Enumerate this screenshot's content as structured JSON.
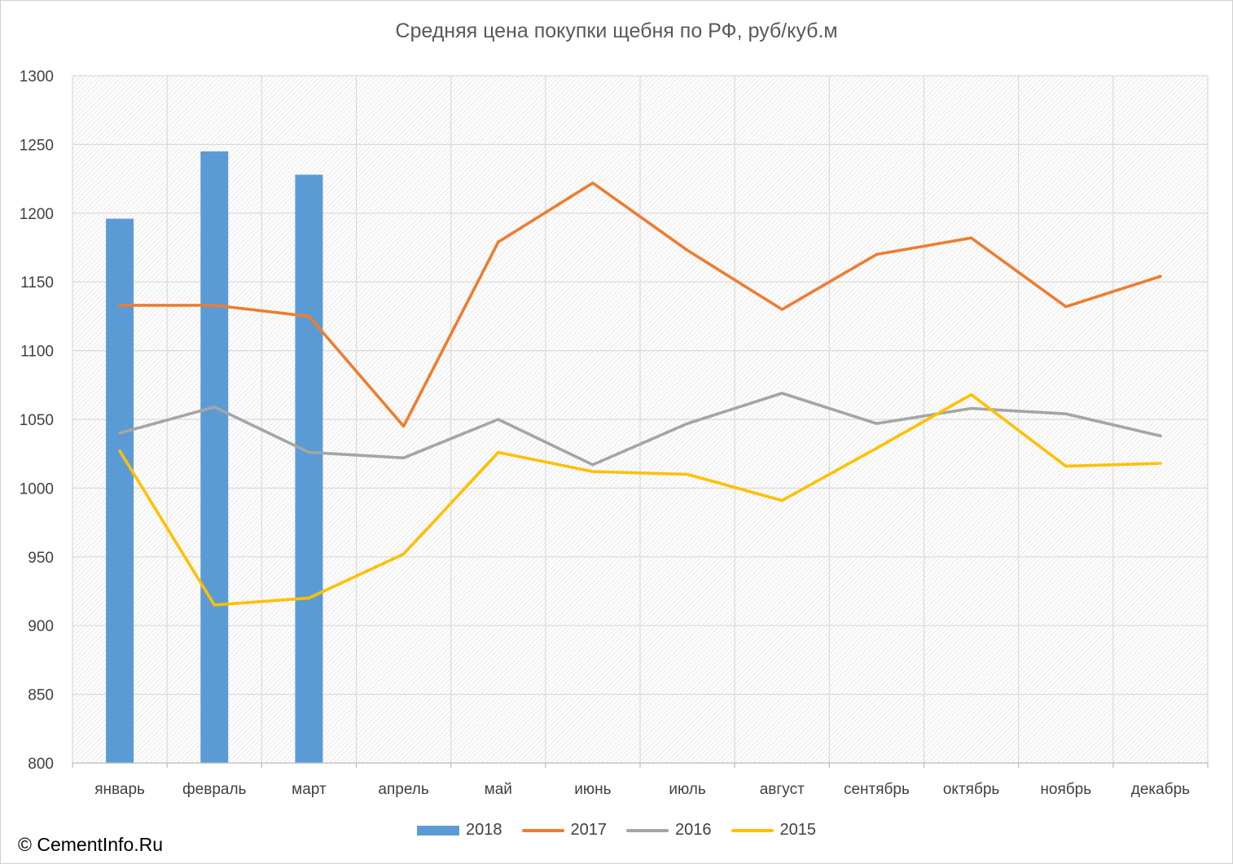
{
  "chart_data": {
    "type": "bar",
    "title": "Средняя цена покупки щебня по РФ, руб/куб.м",
    "categories": [
      "январь",
      "февраль",
      "март",
      "апрель",
      "май",
      "июнь",
      "июль",
      "август",
      "сентябрь",
      "октябрь",
      "ноябрь",
      "декабрь"
    ],
    "ylim": [
      800,
      1300
    ],
    "yticks": [
      "800",
      "850",
      "900",
      "950",
      "1000",
      "1050",
      "1100",
      "1150",
      "1200",
      "1250",
      "1300"
    ],
    "grid": true,
    "legend_position": "bottom",
    "bar_series": {
      "name": "2018",
      "type": "bar",
      "color": "#5b9bd5",
      "values": [
        1196,
        1245,
        1228
      ]
    },
    "series": [
      {
        "name": "2017",
        "type": "line",
        "color": "#ed7d31",
        "values": [
          1133,
          1133,
          1125,
          1045,
          1179,
          1222,
          1173,
          1130,
          1170,
          1182,
          1132,
          1154
        ]
      },
      {
        "name": "2016",
        "type": "line",
        "color": "#a5a5a5",
        "values": [
          1040,
          1059,
          1026,
          1022,
          1050,
          1017,
          1047,
          1069,
          1047,
          1058,
          1054,
          1038
        ]
      },
      {
        "name": "2015",
        "type": "line",
        "color": "#ffc000",
        "values": [
          1027,
          915,
          920,
          952,
          1026,
          1012,
          1010,
          991,
          1029,
          1068,
          1016,
          1018
        ]
      }
    ]
  },
  "footer": {
    "copyright": "© CementInfo.Ru"
  }
}
